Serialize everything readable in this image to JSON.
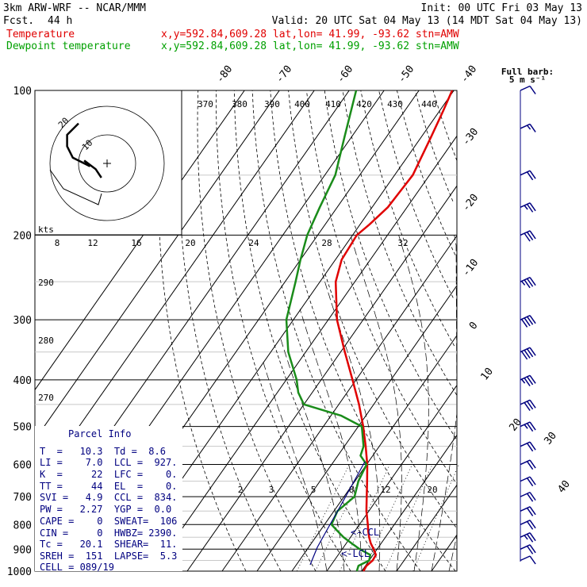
{
  "header": {
    "model": "3km ARW-WRF -- NCAR/MMM",
    "init": "Init: 00 UTC Fri 03 May 13",
    "fcst_label": "Fcst.",
    "fcst_value": "44 h",
    "valid": "Valid: 20 UTC Sat 04 May 13 (14 MDT Sat 04 May 13)",
    "temp_label": "Temperature",
    "temp_info": "x,y=592.84,609.28   lat,lon= 41.99, -93.62  stn=AMW",
    "dew_label": "Dewpoint temperature",
    "dew_info": "x,y=592.84,609.28   lat,lon= 41.99, -93.62  stn=AMW"
  },
  "barb_legend": {
    "line1": "Full barb:",
    "line2": "5 m s⁻¹"
  },
  "colors": {
    "temperature": "#e00000",
    "dewpoint": "#1a8c1a",
    "parcel": "#000080",
    "barbs": "#000080"
  },
  "parcel_info": {
    "title": "Parcel Info",
    "lines": [
      "T  =   10.3  Td =  8.6",
      "LI =    7.0  LCL =  927.",
      "K  =     22  LFC =    0.",
      "TT =     44  EL  =    0.",
      "SVI =   4.9  CCL =  834.",
      "PW =   2.27  YGP =  0.0",
      "CAPE =    0  SWEAT=  106",
      "CIN =     0  HWBZ= 2390.",
      "Tc =   20.1  SHEAR=  11.",
      "SREH =  151  LAPSE=  5.3",
      "CELL = 089/19"
    ]
  },
  "annotations": {
    "ccl": "<-CCL",
    "lcl": "<-LCL",
    "kts": "kts",
    "hodo_ring1": "10",
    "hodo_ring2": "20"
  },
  "chart_data": {
    "type": "line",
    "pressure_axis": {
      "ticks": [
        100,
        200,
        300,
        400,
        500,
        600,
        700,
        800,
        900,
        1000
      ],
      "scale": "log"
    },
    "temperature_axis_labels": [
      -80,
      -70,
      -60,
      -50,
      -40,
      -30,
      -20,
      -10,
      0,
      10,
      20,
      30,
      40
    ],
    "theta_labels": [
      370,
      380,
      390,
      400,
      410,
      420,
      430,
      440
    ],
    "theta_labels_left": [
      290,
      280,
      270
    ],
    "mixing_ratio_labels": [
      2,
      3,
      5,
      8,
      12,
      20
    ],
    "hodo_speed_labels": [
      8,
      12,
      16,
      20,
      24,
      28,
      32
    ],
    "series": [
      {
        "name": "Temperature",
        "p": [
          1000,
          975,
          950,
          925,
          900,
          875,
          850,
          825,
          800,
          750,
          700,
          650,
          600,
          575,
          550,
          500,
          450,
          400,
          350,
          300,
          250,
          225,
          200,
          190,
          175,
          150,
          125,
          110,
          100
        ],
        "t": [
          10.5,
          10.3,
          11.0,
          10.8,
          9.0,
          7.0,
          5.3,
          3.8,
          2.4,
          -0.7,
          -3.5,
          -6.5,
          -9.8,
          -11.8,
          -13.9,
          -18.6,
          -24.2,
          -31.0,
          -38.8,
          -47.5,
          -55.5,
          -58.2,
          -58.8,
          -57.3,
          -55.5,
          -54.8,
          -57.2,
          -59.0,
          -60.5
        ]
      },
      {
        "name": "Dewpoint temperature",
        "p": [
          1000,
          975,
          950,
          925,
          900,
          875,
          850,
          825,
          800,
          750,
          700,
          650,
          600,
          575,
          550,
          500,
          475,
          450,
          425,
          400,
          350,
          300,
          250,
          225,
          200,
          175,
          150,
          125,
          100
        ],
        "t": [
          8.6,
          8.0,
          10.0,
          9.2,
          5.0,
          1.5,
          -2.0,
          -5.0,
          -8.0,
          -9.0,
          -7.0,
          -9.0,
          -10.0,
          -13.5,
          -14.5,
          -19.0,
          -27.0,
          -40.0,
          -44.0,
          -47.0,
          -55.0,
          -62.0,
          -67.0,
          -70.0,
          -73.0,
          -75.0,
          -77.0,
          -82.0,
          -88.0
        ]
      }
    ],
    "wind_barbs": [
      {
        "p": 100,
        "speed_kt": 10,
        "dir": 260
      },
      {
        "p": 120,
        "speed_kt": 15,
        "dir": 255
      },
      {
        "p": 150,
        "speed_kt": 20,
        "dir": 250
      },
      {
        "p": 175,
        "speed_kt": 25,
        "dir": 250
      },
      {
        "p": 200,
        "speed_kt": 30,
        "dir": 250
      },
      {
        "p": 250,
        "speed_kt": 35,
        "dir": 245
      },
      {
        "p": 300,
        "speed_kt": 40,
        "dir": 245
      },
      {
        "p": 350,
        "speed_kt": 40,
        "dir": 240
      },
      {
        "p": 400,
        "speed_kt": 35,
        "dir": 240
      },
      {
        "p": 450,
        "speed_kt": 30,
        "dir": 235
      },
      {
        "p": 500,
        "speed_kt": 25,
        "dir": 235
      },
      {
        "p": 550,
        "speed_kt": 20,
        "dir": 230
      },
      {
        "p": 600,
        "speed_kt": 20,
        "dir": 220
      },
      {
        "p": 650,
        "speed_kt": 20,
        "dir": 210
      },
      {
        "p": 700,
        "speed_kt": 20,
        "dir": 200
      },
      {
        "p": 750,
        "speed_kt": 20,
        "dir": 190
      },
      {
        "p": 800,
        "speed_kt": 20,
        "dir": 180
      },
      {
        "p": 850,
        "speed_kt": 25,
        "dir": 170
      },
      {
        "p": 900,
        "speed_kt": 20,
        "dir": 160
      },
      {
        "p": 950,
        "speed_kt": 10,
        "dir": 150
      }
    ],
    "hodograph_points": [
      [
        -10,
        28
      ],
      [
        -14,
        20
      ],
      [
        -14,
        12
      ],
      [
        -12,
        4
      ],
      [
        -6,
        -2
      ],
      [
        -8,
        2
      ],
      [
        -4,
        -4
      ],
      [
        -2,
        -10
      ]
    ]
  }
}
